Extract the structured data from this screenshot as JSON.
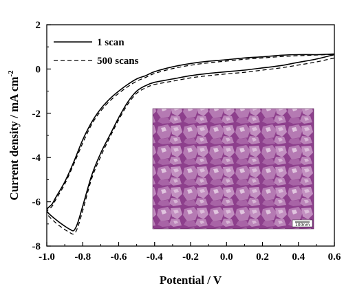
{
  "chart_data": {
    "type": "line",
    "xlabel": "Potential / V",
    "ylabel": "Current density / mA cm",
    "ylabel_superscript": "-2",
    "xlim": [
      -1.0,
      0.6
    ],
    "ylim": [
      -8,
      2
    ],
    "x_ticks": [
      -1.0,
      -0.8,
      -0.6,
      -0.4,
      -0.2,
      0.0,
      0.2,
      0.4,
      0.6
    ],
    "x_tick_labels": [
      "-1.0",
      "-0.8",
      "-0.6",
      "-0.4",
      "-0.2",
      "0.0",
      "0.2",
      "0.4",
      "0.6"
    ],
    "y_ticks": [
      -8,
      -6,
      -4,
      -2,
      0,
      2
    ],
    "y_tick_labels": [
      "-8",
      "-6",
      "-4",
      "-2",
      "0",
      "2"
    ],
    "grid": false,
    "legend_position": "top-left",
    "series": [
      {
        "name": "1 scan",
        "line_style": "solid",
        "color": "#000000",
        "x": [
          0.6,
          0.5,
          0.4,
          0.3,
          0.2,
          0.1,
          0.0,
          -0.1,
          -0.2,
          -0.3,
          -0.4,
          -0.45,
          -0.5,
          -0.55,
          -0.6,
          -0.65,
          -0.7,
          -0.75,
          -0.8,
          -0.83,
          -0.85,
          -0.87,
          -0.9,
          -0.95,
          -1.0,
          -0.97,
          -0.95,
          -0.9,
          -0.85,
          -0.8,
          -0.75,
          -0.7,
          -0.65,
          -0.6,
          -0.55,
          -0.5,
          -0.45,
          -0.4,
          -0.3,
          -0.2,
          -0.1,
          0.0,
          0.1,
          0.2,
          0.3,
          0.4,
          0.5,
          0.6
        ],
        "y": [
          0.65,
          0.45,
          0.3,
          0.15,
          0.05,
          -0.05,
          -0.12,
          -0.2,
          -0.3,
          -0.45,
          -0.6,
          -0.75,
          -1.0,
          -1.5,
          -2.2,
          -3.0,
          -3.8,
          -4.8,
          -6.2,
          -7.0,
          -7.3,
          -7.25,
          -7.1,
          -6.8,
          -6.4,
          -6.1,
          -5.8,
          -5.1,
          -4.2,
          -3.2,
          -2.4,
          -1.8,
          -1.35,
          -1.0,
          -0.7,
          -0.45,
          -0.3,
          -0.12,
          0.1,
          0.25,
          0.35,
          0.42,
          0.5,
          0.55,
          0.62,
          0.65,
          0.65,
          0.68
        ]
      },
      {
        "name": "500 scans",
        "line_style": "dashed",
        "color": "#000000",
        "x": [
          0.6,
          0.5,
          0.4,
          0.3,
          0.2,
          0.1,
          0.0,
          -0.1,
          -0.2,
          -0.3,
          -0.4,
          -0.45,
          -0.5,
          -0.55,
          -0.6,
          -0.65,
          -0.7,
          -0.75,
          -0.8,
          -0.83,
          -0.85,
          -0.87,
          -0.9,
          -0.95,
          -1.0,
          -0.97,
          -0.95,
          -0.9,
          -0.85,
          -0.8,
          -0.75,
          -0.7,
          -0.65,
          -0.6,
          -0.55,
          -0.5,
          -0.45,
          -0.4,
          -0.3,
          -0.2,
          -0.1,
          0.0,
          0.1,
          0.2,
          0.3,
          0.4,
          0.5,
          0.6
        ],
        "y": [
          0.5,
          0.32,
          0.18,
          0.05,
          -0.05,
          -0.15,
          -0.22,
          -0.3,
          -0.4,
          -0.55,
          -0.7,
          -0.85,
          -1.1,
          -1.6,
          -2.3,
          -3.1,
          -3.95,
          -4.95,
          -6.4,
          -7.2,
          -7.45,
          -7.4,
          -7.25,
          -6.95,
          -6.5,
          -6.2,
          -5.9,
          -5.2,
          -4.3,
          -3.35,
          -2.5,
          -1.9,
          -1.45,
          -1.1,
          -0.8,
          -0.55,
          -0.38,
          -0.2,
          0.02,
          0.17,
          0.28,
          0.36,
          0.44,
          0.5,
          0.56,
          0.6,
          0.63,
          0.66
        ]
      }
    ],
    "inset": {
      "kind": "sem-micrograph",
      "scale_bar_label": "100nm",
      "tint_color": "#9c4f9a"
    }
  }
}
